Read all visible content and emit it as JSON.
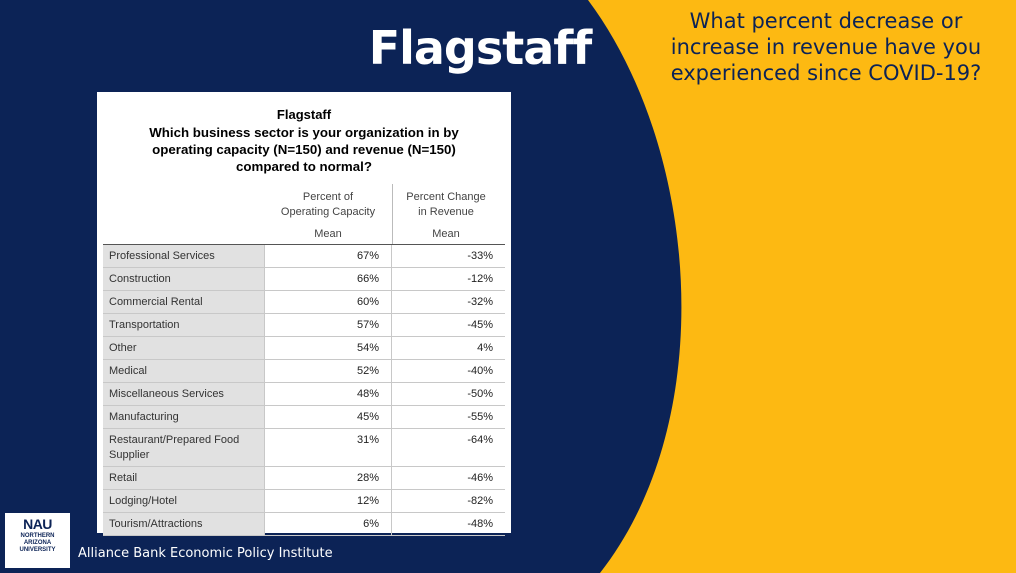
{
  "slide_title": "Flagstaff",
  "question_lines": [
    "What percent decrease or",
    "increase in revenue have you",
    "experienced since COVID-19?"
  ],
  "colors": {
    "navy": "#0c2356",
    "gold": "#fdb912"
  },
  "table": {
    "title": "Flagstaff",
    "question_lines": [
      "Which business sector is your organization in by",
      "operating capacity (N=150) and revenue (N=150)",
      "compared to normal?"
    ],
    "col1_lines": [
      "Percent of",
      "Operating Capacity"
    ],
    "col2_lines": [
      "Percent Change",
      "in Revenue"
    ],
    "col1_stat": "Mean",
    "col2_stat": "Mean",
    "rows": [
      {
        "label": "Professional Services",
        "capacity": "67%",
        "revenue": "-33%"
      },
      {
        "label": "Construction",
        "capacity": "66%",
        "revenue": "-12%"
      },
      {
        "label": "Commercial Rental",
        "capacity": "60%",
        "revenue": "-32%"
      },
      {
        "label": "Transportation",
        "capacity": "57%",
        "revenue": "-45%"
      },
      {
        "label": "Other",
        "capacity": "54%",
        "revenue": "4%"
      },
      {
        "label": "Medical",
        "capacity": "52%",
        "revenue": "-40%"
      },
      {
        "label": "Miscellaneous Services",
        "capacity": "48%",
        "revenue": "-50%"
      },
      {
        "label": "Manufacturing",
        "capacity": "45%",
        "revenue": "-55%"
      },
      {
        "label": "Restaurant/Prepared Food Supplier",
        "capacity": "31%",
        "revenue": "-64%"
      },
      {
        "label": "Retail",
        "capacity": "28%",
        "revenue": "-46%"
      },
      {
        "label": "Lodging/Hotel",
        "capacity": "12%",
        "revenue": "-82%"
      },
      {
        "label": "Tourism/Attractions",
        "capacity": "6%",
        "revenue": "-48%"
      }
    ]
  },
  "logo": {
    "name": "NAU",
    "lines": [
      "NORTHERN",
      "ARIZONA",
      "UNIVERSITY"
    ]
  },
  "footer": "Alliance Bank Economic Policy Institute"
}
